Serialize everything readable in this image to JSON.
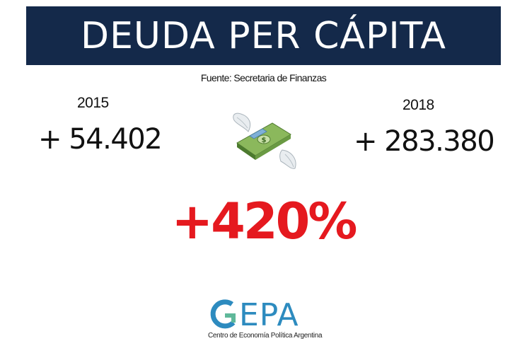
{
  "header": {
    "title": "DEUDA PER CÁPITA"
  },
  "source": "Fuente: Secretaria de Finanzas",
  "left": {
    "year": "2015",
    "amount": "+ 54.402"
  },
  "right": {
    "year": "2018",
    "amount": "+ 283.380"
  },
  "change": "+420%",
  "illustration": {
    "icon": "flying-money-icon"
  },
  "logo": {
    "word": "GEPA",
    "subtitle": "Centro de Economía Política Argentina"
  },
  "colors": {
    "banner": "#14294a",
    "accent_red": "#e5191f",
    "logo_blue": "#2d8bbf",
    "logo_green": "#5fb89a"
  }
}
